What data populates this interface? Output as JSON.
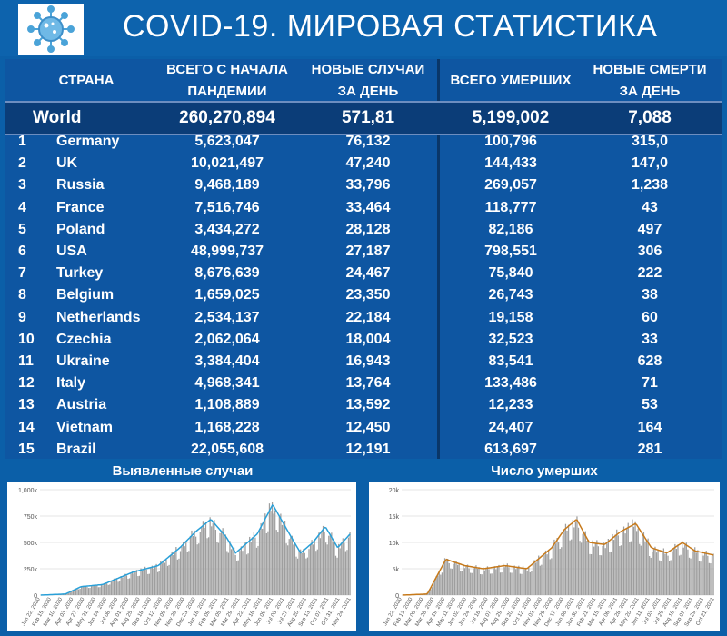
{
  "header": {
    "title": "COVID-19. МИРОВАЯ СТАТИСТИКА"
  },
  "table": {
    "columns": {
      "country": "СТРАНА",
      "total_cases_line1": "ВСЕГО С НАЧАЛА",
      "total_cases_line2": "ПАНДЕМИИ",
      "new_cases_line1": "НОВЫЕ СЛУЧАИ",
      "new_cases_line2": "ЗА ДЕНЬ",
      "total_deaths": "ВСЕГО УМЕРШИХ",
      "new_deaths_line1": "НОВЫЕ СМЕРТИ",
      "new_deaths_line2": "ЗА ДЕНЬ"
    },
    "world": {
      "label": "World",
      "total_cases": "260,270,894",
      "new_cases": "571,81",
      "total_deaths": "5,199,002",
      "new_deaths": "7,088"
    },
    "rows": [
      {
        "rank": "1",
        "country": "Germany",
        "total_cases": "5,623,047",
        "new_cases": "76,132",
        "total_deaths": "100,796",
        "new_deaths": "315,0"
      },
      {
        "rank": "2",
        "country": "UK",
        "total_cases": "10,021,497",
        "new_cases": "47,240",
        "total_deaths": "144,433",
        "new_deaths": "147,0"
      },
      {
        "rank": "3",
        "country": "Russia",
        "total_cases": "9,468,189",
        "new_cases": "33,796",
        "total_deaths": "269,057",
        "new_deaths": "1,238"
      },
      {
        "rank": "4",
        "country": "France",
        "total_cases": "7,516,746",
        "new_cases": "33,464",
        "total_deaths": "118,777",
        "new_deaths": "43"
      },
      {
        "rank": "5",
        "country": "Poland",
        "total_cases": "3,434,272",
        "new_cases": "28,128",
        "total_deaths": "82,186",
        "new_deaths": "497"
      },
      {
        "rank": "6",
        "country": "USA",
        "total_cases": "48,999,737",
        "new_cases": "27,187",
        "total_deaths": "798,551",
        "new_deaths": "306"
      },
      {
        "rank": "7",
        "country": "Turkey",
        "total_cases": "8,676,639",
        "new_cases": "24,467",
        "total_deaths": "75,840",
        "new_deaths": "222"
      },
      {
        "rank": "8",
        "country": "Belgium",
        "total_cases": "1,659,025",
        "new_cases": "23,350",
        "total_deaths": "26,743",
        "new_deaths": "38"
      },
      {
        "rank": "9",
        "country": "Netherlands",
        "total_cases": "2,534,137",
        "new_cases": "22,184",
        "total_deaths": "19,158",
        "new_deaths": "60"
      },
      {
        "rank": "10",
        "country": "Czechia",
        "total_cases": "2,062,064",
        "new_cases": "18,004",
        "total_deaths": "32,523",
        "new_deaths": "33"
      },
      {
        "rank": "11",
        "country": "Ukraine",
        "total_cases": "3,384,404",
        "new_cases": "16,943",
        "total_deaths": "83,541",
        "new_deaths": "628"
      },
      {
        "rank": "12",
        "country": "Italy",
        "total_cases": "4,968,341",
        "new_cases": "13,764",
        "total_deaths": "133,486",
        "new_deaths": "71"
      },
      {
        "rank": "13",
        "country": "Austria",
        "total_cases": "1,108,889",
        "new_cases": "13,592",
        "total_deaths": "12,233",
        "new_deaths": "53"
      },
      {
        "rank": "14",
        "country": "Vietnam",
        "total_cases": "1,168,228",
        "new_cases": "12,450",
        "total_deaths": "24,407",
        "new_deaths": "164"
      },
      {
        "rank": "15",
        "country": "Brazil",
        "total_cases": "22,055,608",
        "new_cases": "12,191",
        "total_deaths": "613,697",
        "new_deaths": "281"
      }
    ]
  },
  "charts": [
    {
      "title": "Выявленные случаи",
      "y_ticks": [
        "0",
        "250k",
        "500k",
        "750k",
        "1,000k"
      ],
      "x_ticks": [
        "Jan 22, 2020",
        "Feb 15, 2020",
        "Mar 10, 2020",
        "Apr 03, 2020",
        "Apr 27, 2020",
        "May 21, 2020",
        "Jun 14, 2020",
        "Jul 08, 2020",
        "Aug 01, 2020",
        "Aug 25, 2020",
        "Sep 18, 2020",
        "Oct 12, 2020",
        "Nov 05, 2020",
        "Nov 29, 2020",
        "Dec 23, 2020",
        "Jan 16, 2021",
        "Feb 09, 2021",
        "Mar 05, 2021",
        "Mar 29, 2021",
        "Apr 22, 2021",
        "May 16, 2021",
        "Jun 09, 2021",
        "Jul 03, 2021",
        "Jul 27, 2021",
        "Aug 20, 2021",
        "Sep 13, 2021",
        "Oct 07, 2021",
        "Oct 31, 2021",
        "Nov 24, 2021"
      ]
    },
    {
      "title": "Число умерших",
      "y_ticks": [
        "0",
        "5k",
        "10k",
        "15k",
        "20k"
      ],
      "x_ticks": [
        "Jan 22, 2020",
        "Feb 13, 2020",
        "Mar 06, 2020",
        "Mar 28, 2020",
        "Apr 19, 2020",
        "May 11, 2020",
        "Jun 02, 2020",
        "Jun 24, 2020",
        "Jul 16, 2020",
        "Aug 07, 2020",
        "Aug 29, 2020",
        "Sep 20, 2020",
        "Oct 12, 2020",
        "Nov 03, 2020",
        "Nov 25, 2020",
        "Dec 17, 2020",
        "Jan 08, 2021",
        "Jan 30, 2021",
        "Feb 21, 2021",
        "Mar 15, 2021",
        "Apr 06, 2021",
        "Apr 28, 2021",
        "May 20, 2021",
        "Jun 11, 2021",
        "Jul 03, 2021",
        "Jul 25, 2021",
        "Aug 16, 2021",
        "Sep 07, 2021",
        "Sep 29, 2021",
        "Oct 21, 2021"
      ]
    }
  ],
  "colors": {
    "background": "#0b5fa8",
    "world_row": "#0b3d78",
    "cases_line": "#2aa0d8",
    "deaths_line": "#c77a1b",
    "bars": "#9e9e9e"
  }
}
